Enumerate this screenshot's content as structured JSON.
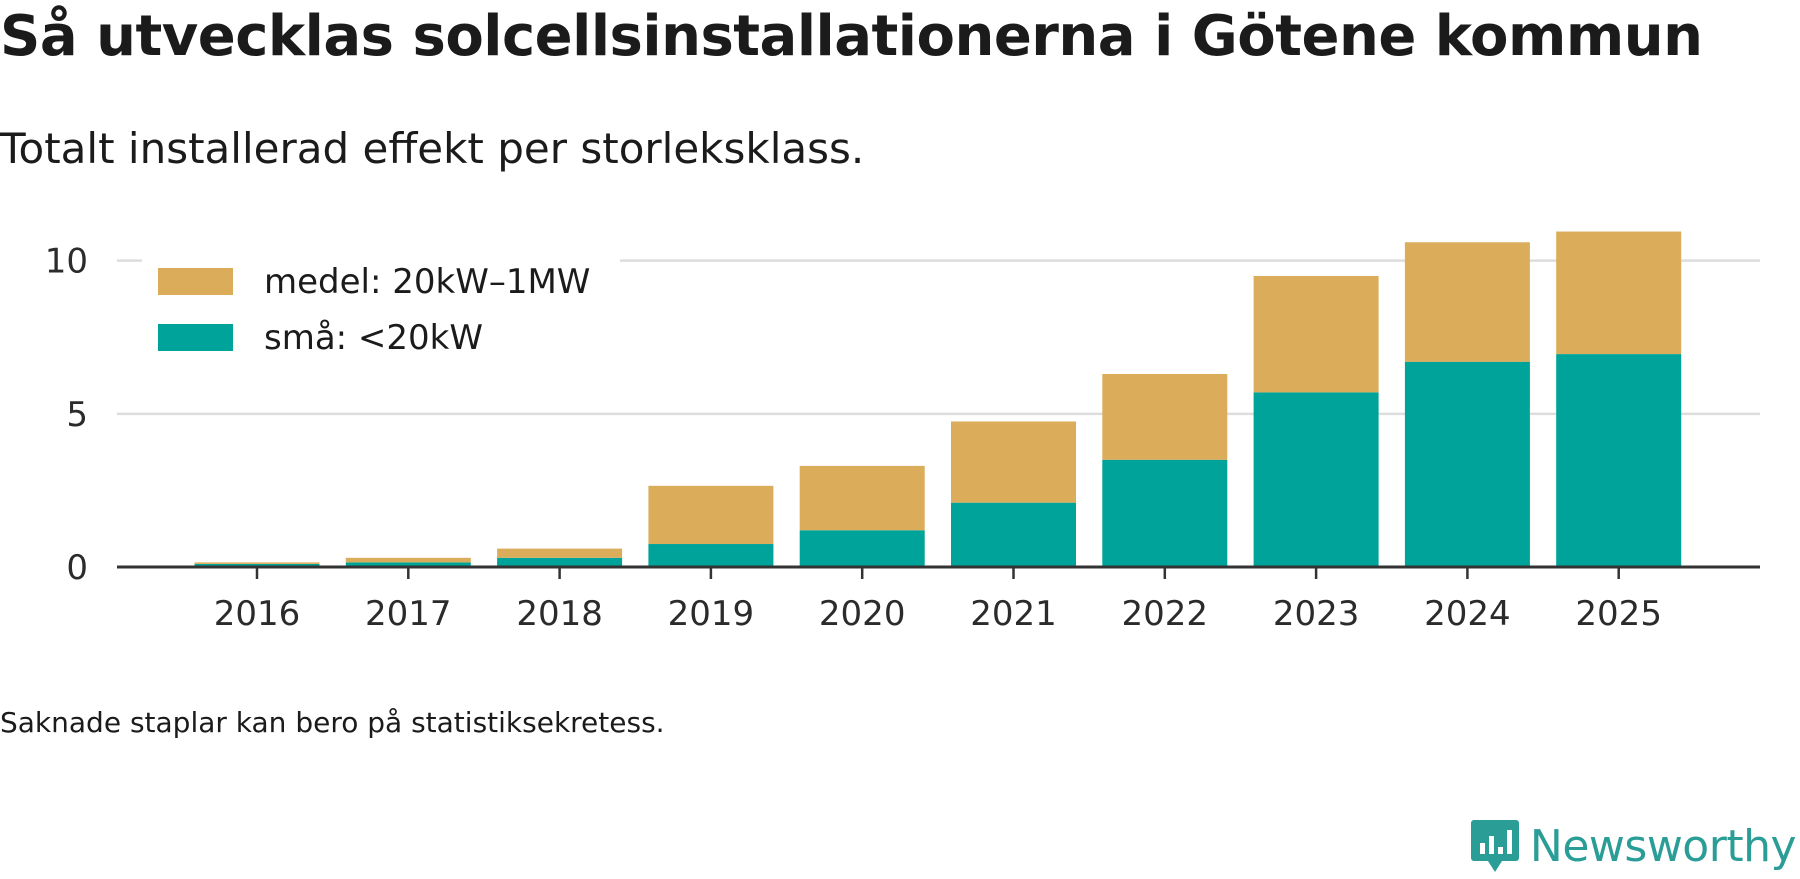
{
  "title": "Så utvecklas solcellsinstallationerna i Götene kommun",
  "subtitle": "Totalt installerad effekt per storleksklass.",
  "note": "Saknade staplar kan bero på statistiksekretess.",
  "brand": {
    "name": "Newsworthy",
    "icon": "newsworthy-logo-icon",
    "color": "#2a9d97"
  },
  "colors": {
    "medel": "#dbac5a",
    "sma": "#00a399",
    "grid": "#dddddd",
    "axis": "#333333"
  },
  "chart_data": {
    "type": "bar",
    "stacked": true,
    "title": "Så utvecklas solcellsinstallationerna i Götene kommun",
    "subtitle": "Totalt installerad effekt per storleksklass.",
    "xlabel": "",
    "ylabel": "",
    "ylim": [
      0,
      11
    ],
    "yticks": [
      "0",
      "5",
      "10"
    ],
    "yticks_values": [
      0,
      5,
      10
    ],
    "grid": true,
    "legend_position": "top-left",
    "categories": [
      "2016",
      "2017",
      "2018",
      "2019",
      "2020",
      "2021",
      "2022",
      "2023",
      "2024",
      "2025"
    ],
    "series": [
      {
        "name": "små: <20kW",
        "key": "sma",
        "color": "#00a399",
        "values": [
          0.1,
          0.15,
          0.3,
          0.75,
          1.2,
          2.1,
          3.5,
          5.7,
          6.7,
          6.95
        ]
      },
      {
        "name": "medel: 20kW–1MW",
        "key": "medel",
        "color": "#dbac5a",
        "values": [
          0.05,
          0.15,
          0.3,
          1.9,
          2.1,
          2.65,
          2.8,
          3.8,
          3.9,
          4.0
        ]
      }
    ]
  }
}
